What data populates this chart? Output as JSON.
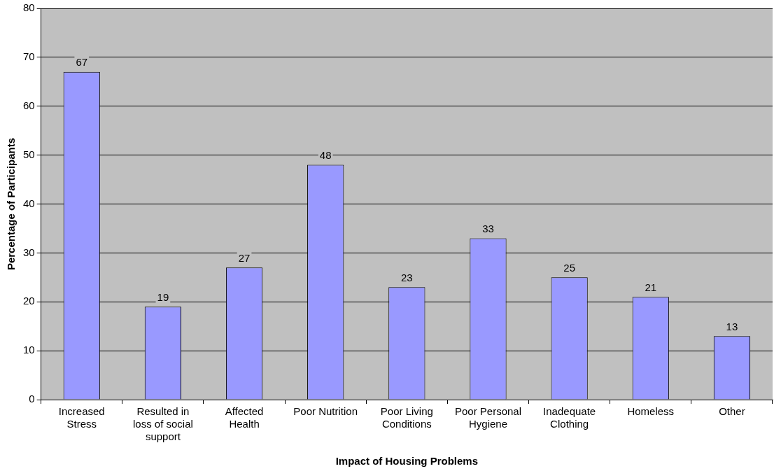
{
  "chart_data": {
    "type": "bar",
    "xlabel": "Impact of Housing Problems",
    "ylabel": "Percentage of Participants",
    "categories": [
      "Increased Stress",
      "Resulted in loss of social support",
      "Affected Health",
      "Poor Nutrition",
      "Poor Living Conditions",
      "Poor Personal Hygiene",
      "Inadequate Clothing",
      "Homeless",
      "Other"
    ],
    "values": [
      67,
      19,
      27,
      48,
      23,
      33,
      25,
      21,
      13
    ],
    "color": "#9999ff",
    "ylim": [
      0,
      80
    ],
    "yticks": [
      0,
      10,
      20,
      30,
      40,
      50,
      60,
      70,
      80
    ],
    "grid": "y",
    "data_labels": true,
    "legend": false
  }
}
